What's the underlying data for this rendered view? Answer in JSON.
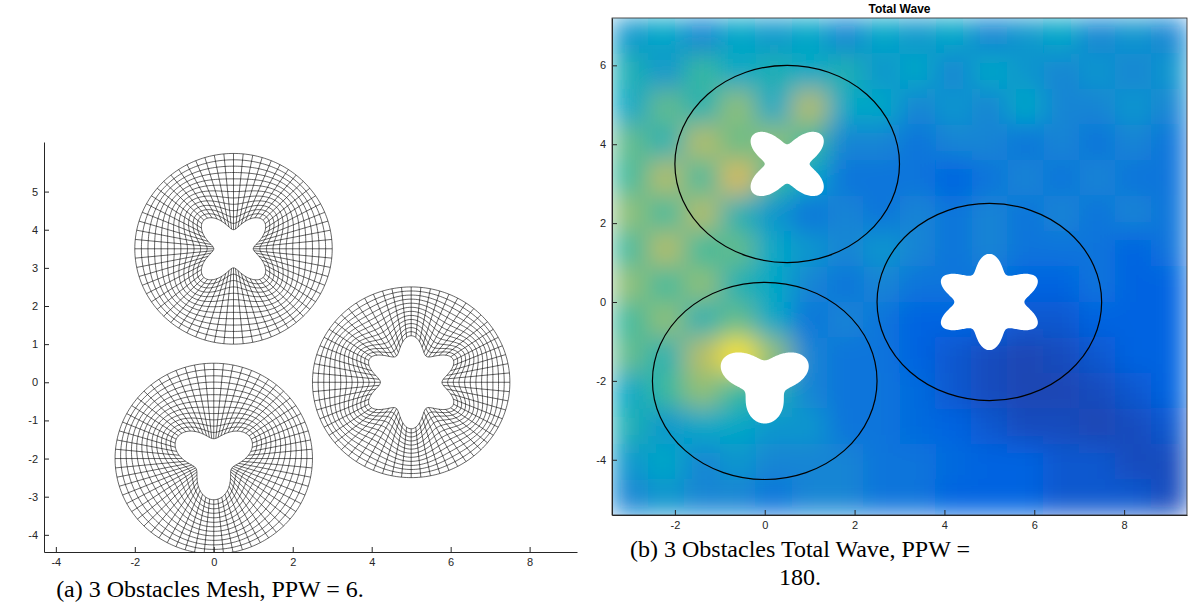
{
  "chart_data": [
    {
      "type": "mesh",
      "caption": "(a) 3 Obstacles Mesh, PPW = 6.",
      "xlim": [
        -4.3,
        9.2
      ],
      "ylim": [
        -4.45,
        6.3
      ],
      "xticks": [
        -4,
        -2,
        0,
        2,
        4,
        6,
        8
      ],
      "yticks": [
        -4,
        -3,
        -2,
        -1,
        0,
        1,
        2,
        3,
        4,
        5
      ],
      "obstacles": [
        {
          "center": [
            0.5,
            3.5
          ],
          "radius": 2.5,
          "base": 0.78,
          "amplitude": 0.28,
          "lobes": 4,
          "lobe_angle": 45,
          "mesh_angular": 64,
          "mesh_radial": 12
        },
        {
          "center": [
            0,
            -2
          ],
          "radius": 2.5,
          "base": 0.8,
          "amplitude": 0.28,
          "lobes": 3,
          "lobe_angle": 30,
          "mesh_angular": 64,
          "mesh_radial": 12
        },
        {
          "center": [
            5,
            0
          ],
          "radius": 2.5,
          "base": 1.0,
          "amplitude": 0.22,
          "lobes": 6,
          "lobe_angle": 90,
          "mesh_angular": 64,
          "mesh_radial": 12
        }
      ]
    },
    {
      "type": "heatmap",
      "title": "Total Wave",
      "caption": "(b) 3 Obstacles Total Wave, PPW = 180.",
      "xlim": [
        -3.4,
        9.4
      ],
      "ylim": [
        -5.4,
        7.2
      ],
      "xticks": [
        -2,
        0,
        2,
        4,
        6,
        8
      ],
      "yticks": [
        -4,
        -2,
        0,
        2,
        4,
        6
      ],
      "zlim": [
        0,
        0.8
      ],
      "cells": [
        [
          0.25,
          0.3,
          0.2,
          0.3,
          0.25,
          0.3,
          0.2,
          0.3,
          0.25,
          0.3,
          0.2,
          0.25,
          0.3,
          0.2,
          0.25,
          0.2
        ],
        [
          0.35,
          0.25,
          0.4,
          0.3,
          0.35,
          0.3,
          0.35,
          0.25,
          0.3,
          0.2,
          0.3,
          0.25,
          0.2,
          0.25,
          0.2,
          0.25
        ],
        [
          0.3,
          0.45,
          0.35,
          0.5,
          0.3,
          0.55,
          0.3,
          0.3,
          0.2,
          0.25,
          0.2,
          0.3,
          0.2,
          0.2,
          0.25,
          0.2
        ],
        [
          0.45,
          0.35,
          0.55,
          0.45,
          0.5,
          0.4,
          0.2,
          0.2,
          0.15,
          0.2,
          0.2,
          0.15,
          0.2,
          0.15,
          0.2,
          0.15
        ],
        [
          0.4,
          0.55,
          0.4,
          0.6,
          0.4,
          0.3,
          0.15,
          0.15,
          0.15,
          0.1,
          0.15,
          0.2,
          0.15,
          0.2,
          0.15,
          0.15
        ],
        [
          0.5,
          0.4,
          0.55,
          0.35,
          0.25,
          0.15,
          0.2,
          0.15,
          0.2,
          0.15,
          0.2,
          0.15,
          0.2,
          0.15,
          0.2,
          0.15
        ],
        [
          0.4,
          0.55,
          0.4,
          0.45,
          0.3,
          0.25,
          0.2,
          0.25,
          0.2,
          0.15,
          0.2,
          0.15,
          0.15,
          0.15,
          0.1,
          0.15
        ],
        [
          0.5,
          0.4,
          0.5,
          0.35,
          0.3,
          0.2,
          0.15,
          0.2,
          0.15,
          0.15,
          0.15,
          0.1,
          0.1,
          0.15,
          0.1,
          0.1
        ],
        [
          0.4,
          0.5,
          0.35,
          0.45,
          0.3,
          0.15,
          0.2,
          0.15,
          0.1,
          0.1,
          0.1,
          0.08,
          0.08,
          0.1,
          0.1,
          0.1
        ],
        [
          0.45,
          0.35,
          0.55,
          0.75,
          0.5,
          0.2,
          0.15,
          0.15,
          0.1,
          0.08,
          0.06,
          0.05,
          0.06,
          0.08,
          0.1,
          0.1
        ],
        [
          0.3,
          0.4,
          0.5,
          0.4,
          0.35,
          0.2,
          0.15,
          0.15,
          0.12,
          0.08,
          0.06,
          0.05,
          0.05,
          0.06,
          0.08,
          0.1
        ],
        [
          0.35,
          0.25,
          0.3,
          0.3,
          0.25,
          0.25,
          0.15,
          0.15,
          0.12,
          0.1,
          0.08,
          0.06,
          0.06,
          0.05,
          0.06,
          0.08
        ],
        [
          0.25,
          0.3,
          0.2,
          0.25,
          0.2,
          0.2,
          0.2,
          0.15,
          0.15,
          0.12,
          0.1,
          0.1,
          0.08,
          0.08,
          0.06,
          0.06
        ],
        [
          0.2,
          0.25,
          0.2,
          0.2,
          0.15,
          0.2,
          0.2,
          0.15,
          0.15,
          0.1,
          0.1,
          0.1,
          0.08,
          0.08,
          0.08,
          0.06
        ]
      ],
      "obstacles": [
        {
          "center": [
            0.5,
            3.5
          ],
          "radius": 2.5,
          "base": 0.78,
          "amplitude": 0.28,
          "lobes": 4,
          "lobe_angle": 45
        },
        {
          "center": [
            0,
            -2
          ],
          "radius": 2.5,
          "base": 0.8,
          "amplitude": 0.28,
          "lobes": 3,
          "lobe_angle": 30
        },
        {
          "center": [
            5,
            0
          ],
          "radius": 2.5,
          "base": 1.0,
          "amplitude": 0.22,
          "lobes": 6,
          "lobe_angle": 90
        }
      ]
    }
  ]
}
